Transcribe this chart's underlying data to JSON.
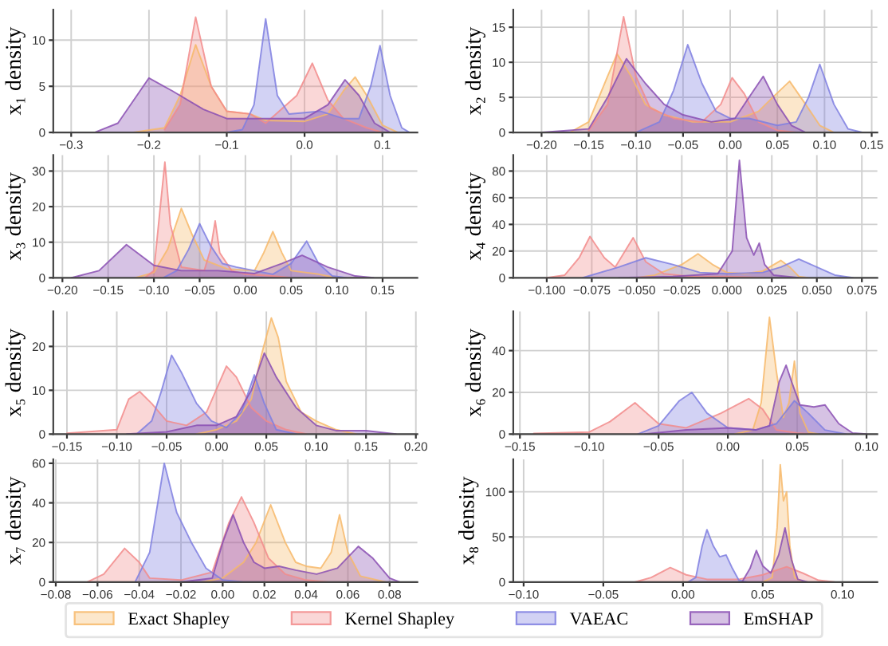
{
  "chart_data": [
    {
      "type": "area",
      "ylabel": "x₁ density",
      "legend": "bottom",
      "grid": true,
      "xlim": [
        -0.323,
        0.145
      ],
      "ylim": [
        0,
        13.3
      ],
      "xticks": [
        {
          "value": -0.3,
          "label": "−0.3"
        },
        {
          "value": -0.2,
          "label": "−0.2"
        },
        {
          "value": -0.1,
          "label": "−0.1"
        },
        {
          "value": 0,
          "label": "0.0"
        },
        {
          "value": 0.1,
          "label": "0.1"
        }
      ],
      "yticks": [
        0,
        5,
        10
      ],
      "series": [
        {
          "name": "Exact Shapley",
          "color": "#f7b96a",
          "x": [
            -0.22,
            -0.18,
            -0.16,
            -0.14,
            -0.12,
            -0.1,
            -0.07,
            -0.05,
            0,
            0.03,
            0.05,
            0.065,
            0.08,
            0.1,
            0.12
          ],
          "values": [
            0,
            0.5,
            4,
            9.5,
            5,
            2.3,
            2,
            1.3,
            1.2,
            2,
            4.5,
            6,
            4,
            0.8,
            0
          ]
        },
        {
          "name": "Kernel Shapley",
          "color": "#f28b8b",
          "x": [
            -0.18,
            -0.16,
            -0.14,
            -0.12,
            -0.1,
            -0.07,
            -0.05,
            -0.01,
            0.01,
            0.03,
            0.05,
            0.08,
            0.1
          ],
          "values": [
            0.3,
            3,
            12.5,
            5,
            2.3,
            2,
            1,
            4,
            7.5,
            3.5,
            1.5,
            0.5,
            0
          ]
        },
        {
          "name": "VAEAC",
          "color": "#7f7fe0",
          "x": [
            -0.1,
            -0.08,
            -0.065,
            -0.05,
            -0.035,
            -0.02,
            0.02,
            0.05,
            0.07,
            0.085,
            0.097,
            0.11,
            0.125,
            0.135
          ],
          "values": [
            0,
            0.3,
            3,
            12.3,
            4,
            2,
            2.3,
            1.5,
            1.5,
            5,
            9.4,
            4,
            0.5,
            0
          ]
        },
        {
          "name": "EmSHAP",
          "color": "#8a4fb3",
          "x": [
            -0.27,
            -0.24,
            -0.2,
            -0.17,
            -0.13,
            -0.1,
            -0.05,
            0,
            0.03,
            0.052,
            0.07,
            0.09,
            0.11
          ],
          "values": [
            0,
            1,
            5.9,
            4.5,
            2.5,
            1.5,
            1.5,
            1.5,
            3,
            5.7,
            4,
            1,
            0
          ]
        }
      ]
    },
    {
      "type": "area",
      "ylabel": "x₂ density",
      "grid": true,
      "xlim": [
        -0.23,
        0.156
      ],
      "ylim": [
        0,
        17.5
      ],
      "xticks": [
        {
          "value": -0.2,
          "label": "−0.20"
        },
        {
          "value": -0.15,
          "label": "−0.15"
        },
        {
          "value": -0.1,
          "label": "−0.10"
        },
        {
          "value": -0.05,
          "label": "−0.05"
        },
        {
          "value": 0,
          "label": "0.00"
        },
        {
          "value": 0.05,
          "label": "0.05"
        },
        {
          "value": 0.1,
          "label": "0.10"
        },
        {
          "value": 0.15,
          "label": "0.15"
        }
      ],
      "yticks": [
        0,
        5,
        10,
        15
      ],
      "series": [
        {
          "name": "Exact Shapley",
          "color": "#f7b96a",
          "x": [
            -0.17,
            -0.15,
            -0.13,
            -0.12,
            -0.105,
            -0.09,
            -0.07,
            -0.04,
            0,
            0.03,
            0.045,
            0.063,
            0.08,
            0.095,
            0.11
          ],
          "values": [
            0,
            1.5,
            8,
            11.2,
            8,
            4,
            2.5,
            1.5,
            1.5,
            3,
            5,
            7.3,
            4,
            1,
            0
          ]
        },
        {
          "name": "Kernel Shapley",
          "color": "#f28b8b",
          "x": [
            -0.15,
            -0.13,
            -0.113,
            -0.1,
            -0.085,
            -0.06,
            -0.03,
            -0.01,
            0.002,
            0.015,
            0.03,
            0.05,
            0.07
          ],
          "values": [
            0.3,
            4,
            16.5,
            8,
            3.5,
            2,
            1.5,
            4,
            7.8,
            5.5,
            1.5,
            0.3,
            0
          ]
        },
        {
          "name": "VAEAC",
          "color": "#7f7fe0",
          "x": [
            -0.1,
            -0.075,
            -0.06,
            -0.045,
            -0.03,
            -0.015,
            0,
            0.02,
            0.05,
            0.07,
            0.083,
            0.095,
            0.11,
            0.125,
            0.14
          ],
          "values": [
            0,
            1.5,
            6,
            12.5,
            7,
            3,
            2,
            2,
            1,
            1.5,
            5,
            9.7,
            4,
            0.5,
            0
          ]
        },
        {
          "name": "EmSHAP",
          "color": "#8a4fb3",
          "x": [
            -0.2,
            -0.15,
            -0.13,
            -0.11,
            -0.09,
            -0.07,
            -0.05,
            -0.02,
            0.005,
            0.02,
            0.035,
            0.05,
            0.065,
            0.08
          ],
          "values": [
            0,
            0.5,
            5,
            10.5,
            7,
            4,
            2.5,
            1.5,
            2,
            5,
            8,
            4,
            1,
            0
          ]
        }
      ]
    },
    {
      "type": "area",
      "ylabel": "x₃ density",
      "grid": true,
      "xlim": [
        -0.21,
        0.188
      ],
      "ylim": [
        0,
        34.5
      ],
      "xticks": [
        {
          "value": -0.2,
          "label": "−0.20"
        },
        {
          "value": -0.15,
          "label": "−0.15"
        },
        {
          "value": -0.1,
          "label": "−0.10"
        },
        {
          "value": -0.05,
          "label": "−0.05"
        },
        {
          "value": 0,
          "label": "0.00"
        },
        {
          "value": 0.05,
          "label": "0.05"
        },
        {
          "value": 0.1,
          "label": "0.10"
        },
        {
          "value": 0.15,
          "label": "0.15"
        }
      ],
      "yticks": [
        0,
        10,
        20,
        30
      ],
      "series": [
        {
          "name": "Exact Shapley",
          "color": "#f7b96a",
          "x": [
            -0.12,
            -0.1,
            -0.085,
            -0.07,
            -0.058,
            -0.045,
            -0.02,
            0.01,
            0.02,
            0.03,
            0.04,
            0.05,
            0.08,
            0.1
          ],
          "values": [
            0,
            1.5,
            8,
            19.5,
            12,
            5,
            2.5,
            2,
            7,
            13,
            7,
            2,
            1,
            0
          ]
        },
        {
          "name": "Kernel Shapley",
          "color": "#f28b8b",
          "x": [
            -0.11,
            -0.1,
            -0.093,
            -0.088,
            -0.082,
            -0.07,
            -0.045,
            -0.038,
            -0.033,
            -0.028,
            -0.015,
            0,
            0.03,
            0.05
          ],
          "values": [
            0,
            2,
            20,
            32.5,
            15,
            3,
            2,
            8,
            16,
            7,
            2,
            1,
            0.5,
            0
          ]
        },
        {
          "name": "VAEAC",
          "color": "#7f7fe0",
          "x": [
            -0.09,
            -0.075,
            -0.062,
            -0.05,
            -0.038,
            -0.025,
            -0.01,
            0.01,
            0.03,
            0.05,
            0.067,
            0.08,
            0.095,
            0.11
          ],
          "values": [
            0,
            2,
            8,
            15.2,
            9,
            4,
            3,
            2,
            1,
            4,
            10.3,
            4,
            0.5,
            0
          ]
        },
        {
          "name": "EmSHAP",
          "color": "#8a4fb3",
          "x": [
            -0.19,
            -0.16,
            -0.13,
            -0.1,
            -0.07,
            -0.03,
            0.01,
            0.04,
            0.062,
            0.09,
            0.12,
            0.14
          ],
          "values": [
            0,
            2,
            9.3,
            3.5,
            2,
            2,
            1.2,
            4,
            6.3,
            3,
            0.5,
            0
          ]
        }
      ]
    },
    {
      "type": "area",
      "ylabel": "x₄ density",
      "grid": true,
      "xlim": [
        -0.1186,
        0.0836
      ],
      "ylim": [
        0,
        92
      ],
      "xticks": [
        {
          "value": -0.1,
          "label": "−0.100"
        },
        {
          "value": -0.075,
          "label": "−0.075"
        },
        {
          "value": -0.05,
          "label": "−0.050"
        },
        {
          "value": -0.025,
          "label": "−0.025"
        },
        {
          "value": 0,
          "label": "0.000"
        },
        {
          "value": 0.025,
          "label": "0.025"
        },
        {
          "value": 0.05,
          "label": "0.050"
        },
        {
          "value": 0.075,
          "label": "0.075"
        }
      ],
      "yticks": [
        0,
        20,
        40,
        60,
        80
      ],
      "series": [
        {
          "name": "Exact Shapley",
          "color": "#f7b96a",
          "x": [
            -0.05,
            -0.04,
            -0.025,
            -0.016,
            -0.008,
            0,
            0.01,
            0.02,
            0.03,
            0.035,
            0.04,
            0.045
          ],
          "values": [
            0,
            2,
            10,
            18,
            10,
            4,
            3,
            5,
            13,
            8,
            1,
            0
          ]
        },
        {
          "name": "Kernel Shapley",
          "color": "#f28b8b",
          "x": [
            -0.1,
            -0.09,
            -0.082,
            -0.076,
            -0.068,
            -0.062,
            -0.052,
            -0.045,
            -0.035,
            -0.02,
            0,
            0.02
          ],
          "values": [
            0,
            2,
            15,
            31,
            15,
            8,
            30,
            12,
            3,
            1,
            1,
            0
          ]
        },
        {
          "name": "VAEAC",
          "color": "#7f7fe0",
          "x": [
            -0.08,
            -0.06,
            -0.045,
            -0.03,
            -0.015,
            0,
            0.02,
            0.03,
            0.04,
            0.05,
            0.06,
            0.07
          ],
          "values": [
            0,
            8,
            15,
            10,
            4,
            3,
            4,
            8,
            14,
            8,
            2,
            0
          ]
        },
        {
          "name": "EmSHAP",
          "color": "#8a4fb3",
          "x": [
            -0.06,
            -0.03,
            -0.005,
            0.003,
            0.007,
            0.011,
            0.015,
            0.018,
            0.021,
            0.026,
            0.04
          ],
          "values": [
            0,
            1,
            3,
            20,
            88,
            30,
            17,
            26,
            10,
            2,
            0
          ]
        }
      ]
    },
    {
      "type": "area",
      "ylabel": "x₅ density",
      "grid": true,
      "xlim": [
        -0.1637,
        0.2015
      ],
      "ylim": [
        0,
        28
      ],
      "xticks": [
        {
          "value": -0.15,
          "label": "−0.15"
        },
        {
          "value": -0.1,
          "label": "−0.10"
        },
        {
          "value": -0.05,
          "label": "−0.05"
        },
        {
          "value": 0,
          "label": "0.00"
        },
        {
          "value": 0.05,
          "label": "0.05"
        },
        {
          "value": 0.1,
          "label": "0.10"
        },
        {
          "value": 0.15,
          "label": "0.15"
        },
        {
          "value": 0.2,
          "label": "0.20"
        }
      ],
      "yticks": [
        0,
        10,
        20
      ],
      "series": [
        {
          "name": "Exact Shapley",
          "color": "#f7b96a",
          "x": [
            -0.02,
            0,
            0.02,
            0.035,
            0.045,
            0.055,
            0.062,
            0.07,
            0.085,
            0.1,
            0.12,
            0.14
          ],
          "values": [
            0,
            1,
            3,
            8,
            18,
            26.5,
            22,
            12,
            5,
            3,
            1,
            0
          ]
        },
        {
          "name": "Kernel Shapley",
          "color": "#f28b8b",
          "x": [
            -0.15,
            -0.1,
            -0.088,
            -0.077,
            -0.065,
            -0.05,
            -0.03,
            -0.01,
            0.01,
            0.02,
            0.035,
            0.05,
            0.07,
            0.09
          ],
          "values": [
            0.2,
            1,
            8,
            9.7,
            7,
            3,
            2,
            5,
            15.5,
            13,
            6,
            3,
            1,
            0
          ]
        },
        {
          "name": "VAEAC",
          "color": "#7f7fe0",
          "x": [
            -0.08,
            -0.065,
            -0.055,
            -0.045,
            -0.035,
            -0.02,
            -0.005,
            0.01,
            0.025,
            0.038,
            0.048,
            0.06,
            0.08
          ],
          "values": [
            0,
            3,
            10,
            18,
            14,
            7,
            3,
            1.5,
            5,
            13.5,
            7,
            1,
            0
          ]
        },
        {
          "name": "EmSHAP",
          "color": "#8a4fb3",
          "x": [
            -0.09,
            -0.05,
            -0.02,
            0,
            0.02,
            0.035,
            0.048,
            0.06,
            0.08,
            0.1,
            0.12,
            0.15,
            0.18
          ],
          "values": [
            0,
            0.5,
            2,
            2,
            4,
            10,
            18.5,
            13,
            6,
            2,
            0.8,
            0.8,
            0
          ]
        }
      ]
    },
    {
      "type": "area",
      "ylabel": "x₆ density",
      "grid": true,
      "xlim": [
        -0.1548,
        0.1078
      ],
      "ylim": [
        0,
        58.8
      ],
      "xticks": [
        {
          "value": -0.15,
          "label": "−0.15"
        },
        {
          "value": -0.1,
          "label": "−0.10"
        },
        {
          "value": -0.05,
          "label": "−0.05"
        },
        {
          "value": 0,
          "label": "0.00"
        },
        {
          "value": 0.05,
          "label": "0.05"
        },
        {
          "value": 0.1,
          "label": "0.10"
        }
      ],
      "yticks": [
        0,
        20,
        40
      ],
      "series": [
        {
          "name": "Exact Shapley",
          "color": "#f7b96a",
          "x": [
            0.005,
            0.018,
            0.024,
            0.03,
            0.035,
            0.04,
            0.044,
            0.048,
            0.052,
            0.058,
            0.065
          ],
          "values": [
            0,
            2,
            15,
            56,
            30,
            8,
            15,
            35,
            10,
            1,
            0
          ]
        },
        {
          "name": "Kernel Shapley",
          "color": "#f28b8b",
          "x": [
            -0.14,
            -0.1,
            -0.085,
            -0.067,
            -0.05,
            -0.03,
            -0.005,
            0.015,
            0.025,
            0.035,
            0.05,
            0.06
          ],
          "values": [
            0.3,
            1,
            6,
            15,
            5,
            3,
            10,
            17,
            12,
            2,
            0.5,
            0
          ]
        },
        {
          "name": "VAEAC",
          "color": "#7f7fe0",
          "x": [
            -0.065,
            -0.05,
            -0.035,
            -0.026,
            -0.015,
            0,
            0.02,
            0.035,
            0.048,
            0.058,
            0.07,
            0.085
          ],
          "values": [
            0,
            4,
            16,
            20,
            10,
            3,
            2,
            5,
            16,
            10,
            2,
            0
          ]
        },
        {
          "name": "EmSHAP",
          "color": "#8a4fb3",
          "x": [
            -0.06,
            -0.03,
            0,
            0.02,
            0.03,
            0.037,
            0.042,
            0.046,
            0.052,
            0.062,
            0.07,
            0.08,
            0.09,
            0.1
          ],
          "values": [
            0,
            2,
            3,
            2,
            4,
            25,
            33,
            25,
            14,
            13,
            14,
            5,
            0.5,
            0
          ]
        }
      ]
    },
    {
      "type": "area",
      "ylabel": "x₇ density",
      "grid": true,
      "xlim": [
        -0.0812,
        0.0933
      ],
      "ylim": [
        0,
        62
      ],
      "xticks": [
        {
          "value": -0.08,
          "label": "−0.08"
        },
        {
          "value": -0.06,
          "label": "−0.06"
        },
        {
          "value": -0.04,
          "label": "−0.04"
        },
        {
          "value": -0.02,
          "label": "−0.02"
        },
        {
          "value": 0,
          "label": "0.00"
        },
        {
          "value": 0.02,
          "label": "0.02"
        },
        {
          "value": 0.04,
          "label": "0.04"
        },
        {
          "value": 0.06,
          "label": "0.06"
        },
        {
          "value": 0.08,
          "label": "0.08"
        }
      ],
      "yticks": [
        0,
        20,
        40,
        60
      ],
      "series": [
        {
          "name": "Exact Shapley",
          "color": "#f7b96a",
          "x": [
            -0.01,
            0,
            0.01,
            0.016,
            0.023,
            0.03,
            0.035,
            0.04,
            0.047,
            0.052,
            0.056,
            0.06,
            0.066,
            0.078
          ],
          "values": [
            0,
            2,
            10,
            20,
            39,
            20,
            10,
            8,
            7,
            15,
            34,
            15,
            3,
            0
          ]
        },
        {
          "name": "Kernel Shapley",
          "color": "#f28b8b",
          "x": [
            -0.065,
            -0.057,
            -0.047,
            -0.04,
            -0.035,
            -0.02,
            -0.005,
            0.003,
            0.009,
            0.015,
            0.022,
            0.03,
            0.04,
            0.05
          ],
          "values": [
            0,
            4,
            17,
            10,
            2,
            1,
            5,
            30,
            43,
            30,
            12,
            4,
            1,
            0
          ]
        },
        {
          "name": "VAEAC",
          "color": "#7f7fe0",
          "x": [
            -0.042,
            -0.035,
            -0.028,
            -0.022,
            -0.015,
            -0.008,
            0,
            0.01,
            0.02
          ],
          "values": [
            0,
            15,
            60,
            35,
            20,
            7,
            1,
            0,
            0
          ]
        },
        {
          "name": "EmSHAP",
          "color": "#8a4fb3",
          "x": [
            -0.02,
            -0.005,
            0,
            0.005,
            0.01,
            0.015,
            0.02,
            0.027,
            0.035,
            0.045,
            0.055,
            0.065,
            0.072,
            0.08,
            0.085
          ],
          "values": [
            0,
            2,
            20,
            34,
            20,
            10,
            7,
            8,
            6,
            4,
            7,
            18,
            12,
            2,
            0
          ]
        }
      ]
    },
    {
      "type": "area",
      "ylabel": "x₈ density",
      "grid": true,
      "xlim": [
        -0.1065,
        0.1219
      ],
      "ylim": [
        0,
        136
      ],
      "xticks": [
        {
          "value": -0.1,
          "label": "−0.10"
        },
        {
          "value": -0.05,
          "label": "−0.05"
        },
        {
          "value": 0,
          "label": "0.00"
        },
        {
          "value": 0.05,
          "label": "0.05"
        },
        {
          "value": 0.1,
          "label": "0.10"
        }
      ],
      "yticks": [
        0,
        50,
        100
      ],
      "series": [
        {
          "name": "Exact Shapley",
          "color": "#f7b96a",
          "x": [
            0.05,
            0.056,
            0.059,
            0.061,
            0.063,
            0.065,
            0.067,
            0.07,
            0.075
          ],
          "values": [
            0,
            5,
            60,
            130,
            90,
            100,
            40,
            5,
            0
          ]
        },
        {
          "name": "Kernel Shapley",
          "color": "#f28b8b",
          "x": [
            -0.03,
            -0.02,
            -0.008,
            0.002,
            0.015,
            0.035,
            0.05,
            0.065,
            0.075,
            0.085,
            0.095
          ],
          "values": [
            0,
            5,
            16,
            8,
            3,
            3,
            8,
            17,
            10,
            2,
            0
          ]
        },
        {
          "name": "VAEAC",
          "color": "#7f7fe0",
          "x": [
            0.003,
            0.008,
            0.012,
            0.015,
            0.019,
            0.023,
            0.027,
            0.031,
            0.035,
            0.04
          ],
          "values": [
            0,
            5,
            40,
            58,
            40,
            28,
            30,
            15,
            2,
            0
          ]
        },
        {
          "name": "EmSHAP",
          "color": "#8a4fb3",
          "x": [
            0.037,
            0.042,
            0.046,
            0.05,
            0.055,
            0.06,
            0.064,
            0.068,
            0.072,
            0.078
          ],
          "values": [
            0,
            15,
            35,
            18,
            10,
            30,
            60,
            25,
            3,
            0
          ]
        }
      ]
    }
  ]
}
